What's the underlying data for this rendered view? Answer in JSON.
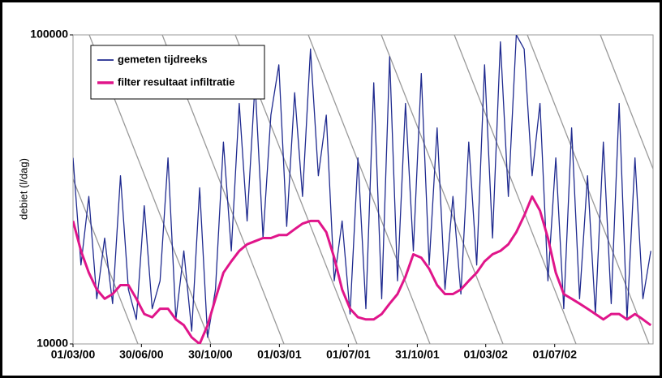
{
  "chart_data": {
    "type": "line",
    "y_label": "debiet (l/dag)",
    "log_y": true,
    "ylim": [
      10000,
      100000
    ],
    "yticks": [
      10000,
      100000
    ],
    "xlim": [
      "01/03/00",
      "22/12/02"
    ],
    "xticks": [
      "01/03/00",
      "30/06/00",
      "30/10/00",
      "01/03/01",
      "01/07/01",
      "31/10/01",
      "01/03/02",
      "01/07/02"
    ],
    "legend": "upper left",
    "x": [
      "01/03/00",
      "15/03/00",
      "29/03/00",
      "12/04/00",
      "26/04/00",
      "10/05/00",
      "24/05/00",
      "07/06/00",
      "21/06/00",
      "05/07/00",
      "19/07/00",
      "02/08/00",
      "16/08/00",
      "30/08/00",
      "13/09/00",
      "27/09/00",
      "11/10/00",
      "25/10/00",
      "08/11/00",
      "22/11/00",
      "06/12/00",
      "20/12/00",
      "03/01/01",
      "17/01/01",
      "31/01/01",
      "14/02/01",
      "28/02/01",
      "14/03/01",
      "28/03/01",
      "11/04/01",
      "25/04/01",
      "09/05/01",
      "23/05/01",
      "06/06/01",
      "20/06/01",
      "04/07/01",
      "18/07/01",
      "01/08/01",
      "15/08/01",
      "29/08/01",
      "12/09/01",
      "26/09/01",
      "10/10/01",
      "24/10/01",
      "07/11/01",
      "21/11/01",
      "05/12/01",
      "19/12/01",
      "02/01/02",
      "16/01/02",
      "30/01/02",
      "13/02/02",
      "27/02/02",
      "13/03/02",
      "27/03/02",
      "10/04/02",
      "24/04/02",
      "08/05/02",
      "22/05/02",
      "05/06/02",
      "19/06/02",
      "03/07/02",
      "17/07/02",
      "31/07/02",
      "14/08/02",
      "28/08/02",
      "11/09/02",
      "25/09/02",
      "09/10/02",
      "23/10/02",
      "06/11/02",
      "20/11/02",
      "04/12/02",
      "18/12/02"
    ],
    "series": [
      {
        "name": "gemeten tijdreeks",
        "color": "#1f2a8f",
        "width": 1.3,
        "values": [
          40000,
          18000,
          30000,
          14000,
          22000,
          13500,
          35000,
          15000,
          12000,
          28000,
          13000,
          16000,
          40000,
          12000,
          20000,
          11000,
          32000,
          10500,
          15000,
          45000,
          20000,
          60000,
          25000,
          70000,
          22000,
          55000,
          80000,
          24000,
          65000,
          30000,
          90000,
          35000,
          55000,
          16000,
          25000,
          12500,
          40000,
          13000,
          70000,
          14000,
          85000,
          16000,
          60000,
          20000,
          75000,
          18000,
          50000,
          15000,
          30000,
          14500,
          45000,
          18000,
          80000,
          22000,
          95000,
          30000,
          100000,
          90000,
          35000,
          60000,
          16000,
          40000,
          13000,
          50000,
          14000,
          35000,
          12500,
          45000,
          13500,
          60000,
          12000,
          40000,
          14000,
          20000
        ]
      },
      {
        "name": "filter resultaat infiltratie",
        "color": "#e0158a",
        "width": 3,
        "values": [
          25000,
          20000,
          17000,
          15000,
          14000,
          14500,
          15500,
          15500,
          14000,
          12500,
          12200,
          13000,
          13000,
          12000,
          11500,
          10500,
          10000,
          11500,
          14000,
          17000,
          18500,
          20000,
          21000,
          21500,
          22000,
          22000,
          22500,
          22500,
          23500,
          24500,
          25000,
          25000,
          23000,
          19000,
          15000,
          13000,
          12200,
          12000,
          12000,
          12500,
          13500,
          14500,
          16500,
          19500,
          19000,
          17500,
          15500,
          14500,
          14500,
          15000,
          16000,
          17000,
          18500,
          19500,
          20000,
          21000,
          23000,
          26000,
          30000,
          27000,
          22000,
          17000,
          14500,
          14000,
          13500,
          13000,
          12500,
          12000,
          12500,
          12500,
          12000,
          12500,
          12000,
          11500
        ]
      }
    ]
  }
}
